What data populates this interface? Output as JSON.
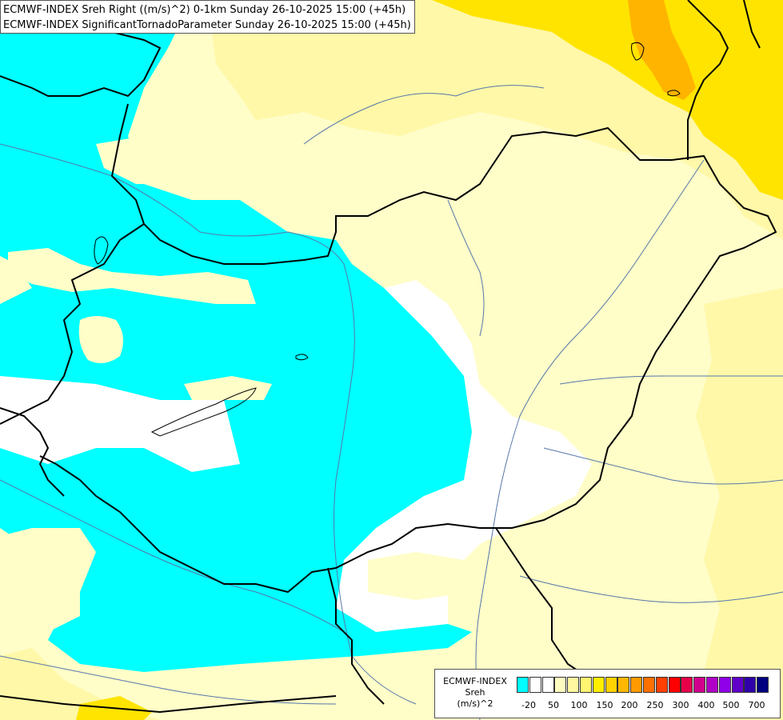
{
  "title_lines": [
    "ECMWF-INDEX Sreh Right ((m/s)^2) 0-1km Sunday 26-10-2025 15:00 (+45h)",
    "ECMWF-INDEX SignificantTornadoParameter Sunday 26-10-2025 15:00 (+45h)"
  ],
  "legend": {
    "label_lines": [
      "ECMWF-INDEX",
      "Sreh",
      "(m/s)^2"
    ],
    "swatch_colors": [
      "#00ffff",
      "#ffffff",
      "#ffffff",
      "#fffcc0",
      "#fff8a0",
      "#fff570",
      "#ffee00",
      "#ffd200",
      "#ffb800",
      "#ff9a00",
      "#ff7000",
      "#ff4000",
      "#ff0000",
      "#e8004a",
      "#d0008c",
      "#b000c8",
      "#9000e8",
      "#6000c8",
      "#3000a8",
      "#000080"
    ],
    "ticks": [
      "-20",
      "50",
      "100",
      "150",
      "200",
      "250",
      "300",
      "400",
      "500",
      "700"
    ]
  },
  "colors": {
    "cyan_low": "#00ffff",
    "white_zero": "#ffffff",
    "pale_yellow": "#fffdc8",
    "light_yellow": "#fff8a8",
    "yellow": "#ffe400",
    "orange": "#ffb400",
    "border": "#000000",
    "river": "#5577aa"
  }
}
